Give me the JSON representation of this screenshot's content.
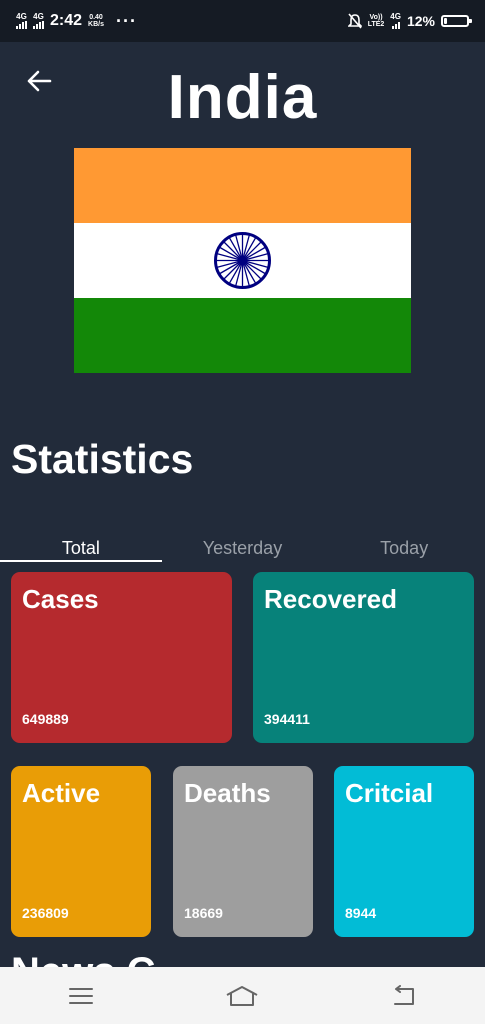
{
  "status_bar": {
    "sim1": "4G",
    "sim2": "4G",
    "time": "2:42",
    "speed_value": "0.40",
    "speed_unit": "KB/s",
    "volte": "Vo))",
    "lte": "LTE2",
    "net": "4G",
    "battery": "12%",
    "battery_level": 0.12,
    "icons": [
      "signal-icon",
      "signal-icon",
      "more-icon",
      "mute-icon",
      "battery-icon"
    ]
  },
  "header": {
    "title": "India",
    "back_icon": "arrow-left-icon"
  },
  "flag": {
    "colors": {
      "saffron": "#ff9933",
      "white": "#ffffff",
      "green": "#138808",
      "chakra": "#000080"
    }
  },
  "statistics": {
    "heading": "Statistics",
    "tabs": [
      {
        "label": "Total",
        "active": true
      },
      {
        "label": "Yesterday",
        "active": false
      },
      {
        "label": "Today",
        "active": false
      }
    ],
    "cards": [
      {
        "label": "Cases",
        "value": "649889",
        "color": "#b52a2e"
      },
      {
        "label": "Recovered",
        "value": "394411",
        "color": "#07827a"
      },
      {
        "label": "Active",
        "value": "236809",
        "color": "#e99d06"
      },
      {
        "label": "Deaths",
        "value": "18669",
        "color": "#9e9e9e"
      },
      {
        "label": "Critcial",
        "value": "8944",
        "color": "#02bcd6"
      }
    ]
  },
  "partial_section": "News C",
  "navbar": {
    "icons": [
      "menu-icon",
      "home-icon",
      "back-icon"
    ]
  }
}
